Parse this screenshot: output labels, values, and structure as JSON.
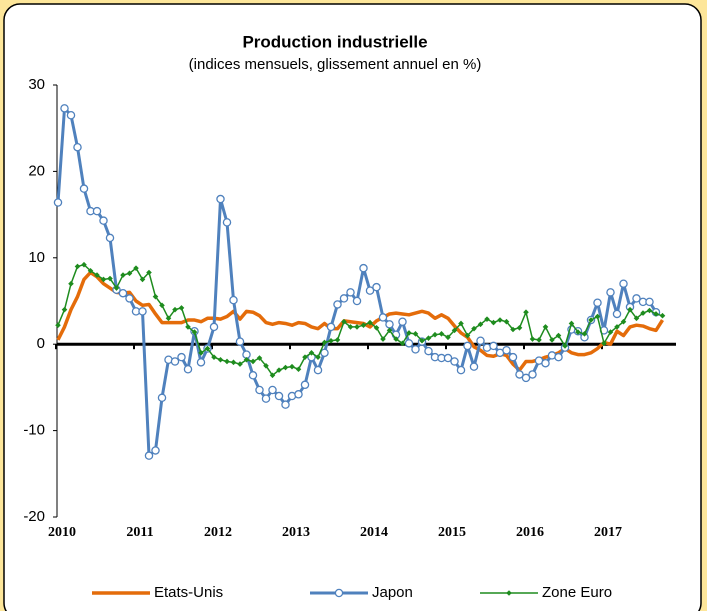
{
  "chart_data": {
    "type": "line",
    "title": "Production industrielle",
    "subtitle": "(indices mensuels, glissement annuel en %)",
    "categories": [
      "2010",
      null,
      null,
      null,
      null,
      null,
      null,
      null,
      null,
      null,
      null,
      null,
      "2011",
      null,
      null,
      null,
      null,
      null,
      null,
      null,
      null,
      null,
      null,
      null,
      "2012",
      null,
      null,
      null,
      null,
      null,
      null,
      null,
      null,
      null,
      null,
      null,
      "2013",
      null,
      null,
      null,
      null,
      null,
      null,
      null,
      null,
      null,
      null,
      null,
      "2014",
      null,
      null,
      null,
      null,
      null,
      null,
      null,
      null,
      null,
      null,
      null,
      "2015",
      null,
      null,
      null,
      null,
      null,
      null,
      null,
      null,
      null,
      null,
      null,
      "2016",
      null,
      null,
      null,
      null,
      null,
      null,
      null,
      null,
      null,
      null,
      null,
      "2017",
      null,
      null,
      null,
      null,
      null,
      null,
      null,
      null,
      null
    ],
    "ylim": [
      -20,
      30
    ],
    "yticks": [
      -20,
      -10,
      0,
      10,
      20,
      30
    ],
    "grid": false,
    "legend": "bottom",
    "series": [
      {
        "name": "Etats-Unis",
        "color": "#e46c0a",
        "width": 3.5,
        "marker": "none",
        "values": [
          0.5,
          2,
          4,
          5.5,
          7.5,
          8.3,
          7.8,
          7,
          6.5,
          6,
          5.9,
          6,
          5,
          4.5,
          4.6,
          3.5,
          2.5,
          2.5,
          2.5,
          2.5,
          2.8,
          2.8,
          2.6,
          3,
          3,
          2.9,
          3.2,
          3.8,
          2.9,
          3.8,
          3.7,
          3.3,
          2.5,
          2.3,
          2.5,
          2.4,
          2.2,
          2.5,
          2.4,
          2,
          1.8,
          2.4,
          1.8,
          1.8,
          2.7,
          2.6,
          2.5,
          2.4,
          2,
          2.7,
          3.1,
          3.5,
          3.6,
          3.5,
          3.4,
          3.6,
          3.8,
          3.6,
          3,
          3.4,
          3,
          2.1,
          1.3,
          0.8,
          -0.3,
          -0.7,
          -1.3,
          -1.4,
          -1.1,
          -1.3,
          -2.3,
          -3,
          -2,
          -2,
          -1.8,
          -1.5,
          -1.3,
          -1,
          -0.5,
          -1,
          -1.2,
          -1.2,
          -1,
          -0.5,
          0.2,
          0,
          1.5,
          1,
          2,
          2.2,
          2.1,
          1.8,
          1.6,
          2.8
        ]
      },
      {
        "name": "Japon",
        "color": "#4f81bd",
        "width": 3,
        "marker": "circle",
        "values": [
          16.4,
          27.3,
          26.5,
          22.8,
          18,
          15.4,
          15.4,
          14.3,
          12.3,
          6.3,
          5.9,
          5.3,
          3.8,
          3.8,
          -12.9,
          -12.3,
          -6.2,
          -1.8,
          -2,
          -1.5,
          -2.9,
          1.5,
          -2.1,
          -0.5,
          2,
          16.8,
          14.1,
          5.1,
          0.3,
          -1.2,
          -3.6,
          -5.3,
          -6.3,
          -5.3,
          -6,
          -7,
          -6,
          -5.8,
          -4.7,
          -1.5,
          -3,
          -1,
          2,
          4.6,
          5.3,
          6,
          5,
          8.8,
          6.2,
          6.6,
          3.1,
          2.3,
          1.1,
          2.6,
          0.1,
          -0.6,
          0.3,
          -0.8,
          -1.5,
          -1.6,
          -1.6,
          -2,
          -3,
          -0.2,
          -2.6,
          0.4,
          -0.4,
          -0.2,
          -1,
          -0.7,
          -1.5,
          -3.5,
          -3.9,
          -3.5,
          -1.9,
          -2.2,
          -1.3,
          -1.5,
          -0.4,
          1.7,
          1.5,
          0.8,
          2.8,
          4.8,
          1.6,
          6,
          3.5,
          7,
          4.3,
          5.3,
          4.9,
          4.9,
          3.7,
          null
        ]
      },
      {
        "name": "Zone Euro",
        "color": "#1e8c1e",
        "width": 1.5,
        "marker": "diamond",
        "values": [
          2.2,
          4,
          7,
          9,
          9.2,
          8.5,
          8,
          7.5,
          7.6,
          6.5,
          8,
          8.2,
          8.8,
          7.5,
          8.3,
          5.5,
          4.5,
          3,
          4,
          4.2,
          2,
          1.4,
          -1,
          -0.5,
          -1.5,
          -1.8,
          -2,
          -2.1,
          -2.3,
          -1.8,
          -2,
          -1.6,
          -2.5,
          -3.6,
          -3,
          -2.7,
          -2.6,
          -2.9,
          -1.5,
          -1,
          -1.5,
          0.2,
          0.4,
          0.5,
          2.6,
          2,
          2,
          2.2,
          2.5,
          1.9,
          0.6,
          1.6,
          0.6,
          0.1,
          1.3,
          1.2,
          0.4,
          0.7,
          1.1,
          1.2,
          0.8,
          1.6,
          2.4,
          1,
          1.8,
          2.3,
          2.9,
          2.5,
          2.8,
          2.6,
          1.7,
          1.9,
          3.7,
          0.6,
          0.5,
          2,
          0.5,
          1,
          -0.2,
          2.4,
          1.4,
          1.2,
          2.8,
          3.2,
          0.1,
          1.4,
          2,
          2.6,
          4,
          3,
          3.6,
          3.9,
          3.5,
          3.3
        ]
      }
    ]
  }
}
